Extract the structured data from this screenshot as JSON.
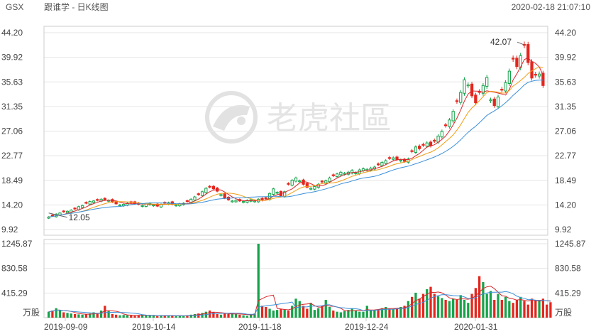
{
  "header": {
    "ticker": "GSX",
    "name": "跟谁学 - 日K线图",
    "timestamp": "2020-02-18 21:07:10"
  },
  "watermark": {
    "text": "老虎社區",
    "icon": "tiger-logo-icon"
  },
  "colors": {
    "up": "#16a34a",
    "down": "#e5261e",
    "ma5": "#d8262a",
    "ma10": "#f39c12",
    "ma20": "#3a8fd9"
  },
  "chart_data": {
    "type": "candlestick",
    "price_axis": {
      "ticks": [
        44.2,
        39.92,
        35.63,
        31.35,
        27.06,
        22.77,
        18.49,
        14.2,
        9.92
      ],
      "tick_labels": [
        "44.20",
        "39.92",
        "35.63",
        "31.35",
        "27.06",
        "22.77",
        "18.49",
        "14.20",
        "9.92"
      ],
      "ylim": [
        9.92,
        44.2
      ]
    },
    "volume_axis": {
      "ticks": [
        1245.87,
        830.58,
        415.29
      ],
      "tick_labels": [
        "1245.87",
        "830.58",
        "415.29"
      ],
      "unit": "万股",
      "ylim": [
        0,
        1245.87
      ]
    },
    "x_labels": [
      "2019-09-09",
      "2019-10-14",
      "2019-11-18",
      "2019-12-24",
      "2020-01-31"
    ],
    "annotations": {
      "high": "42.07",
      "low": "12.05"
    },
    "closes": [
      12.1,
      12.3,
      12.6,
      12.8,
      13.0,
      13.1,
      13.3,
      13.5,
      13.9,
      14.1,
      14.5,
      14.8,
      14.9,
      15.0,
      15.2,
      15.1,
      15.0,
      14.7,
      14.4,
      14.2,
      14.3,
      14.5,
      14.6,
      14.4,
      14.3,
      14.1,
      14.4,
      14.5,
      14.2,
      14.0,
      14.3,
      14.5,
      14.6,
      14.3,
      14.2,
      14.4,
      14.5,
      14.8,
      15.2,
      15.6,
      16.0,
      16.5,
      17.1,
      17.3,
      17.0,
      16.6,
      16.0,
      15.4,
      15.1,
      14.9,
      15.0,
      14.9,
      14.8,
      15.0,
      15.1,
      14.9,
      15.2,
      15.0,
      15.3,
      16.2,
      17.0,
      16.4,
      15.8,
      16.5,
      17.8,
      18.5,
      18.9,
      18.4,
      17.8,
      17.3,
      17.1,
      17.4,
      17.8,
      18.2,
      18.4,
      18.9,
      19.3,
      19.6,
      19.9,
      19.7,
      19.9,
      20.2,
      19.8,
      20.3,
      20.5,
      20.4,
      20.6,
      20.8,
      21.2,
      21.6,
      21.9,
      22.3,
      22.4,
      22.1,
      22.0,
      21.8,
      22.2,
      23.5,
      24.3,
      24.0,
      24.6,
      25.0,
      24.5,
      25.3,
      26.2,
      27.0,
      28.0,
      29.0,
      30.5,
      32.2,
      33.8,
      36.0,
      35.1,
      33.2,
      32.0,
      33.8,
      35.0,
      36.4,
      32.5,
      31.5,
      33.0,
      34.2,
      35.5,
      37.5,
      39.6,
      38.3,
      40.2,
      42.0,
      39.0,
      36.3,
      36.8,
      37.0,
      35.0
    ],
    "volumes": [
      100,
      120,
      160,
      130,
      90,
      80,
      70,
      60,
      55,
      50,
      60,
      70,
      90,
      80,
      120,
      200,
      110,
      60,
      50,
      40,
      45,
      40,
      35,
      30,
      40,
      50,
      45,
      35,
      30,
      25,
      30,
      40,
      35,
      30,
      25,
      30,
      35,
      40,
      50,
      60,
      70,
      80,
      100,
      120,
      90,
      60,
      50,
      70,
      60,
      80,
      60,
      50,
      40,
      30,
      60,
      70,
      1245.87,
      200,
      180,
      150,
      120,
      130,
      150,
      140,
      120,
      200,
      320,
      280,
      200,
      150,
      250,
      130,
      160,
      200,
      300,
      180,
      120,
      100,
      90,
      110,
      130,
      150,
      120,
      100,
      100,
      200,
      120,
      130,
      140,
      160,
      180,
      150,
      140,
      160,
      180,
      200,
      280,
      350,
      420,
      320,
      400,
      480,
      520,
      400,
      360,
      330,
      300,
      280,
      320,
      300,
      380,
      300,
      250,
      400,
      500,
      700,
      600,
      400,
      450,
      300,
      400,
      300,
      350,
      280,
      250,
      300,
      350,
      280,
      220,
      320,
      300,
      280,
      320,
      220,
      260
    ]
  }
}
